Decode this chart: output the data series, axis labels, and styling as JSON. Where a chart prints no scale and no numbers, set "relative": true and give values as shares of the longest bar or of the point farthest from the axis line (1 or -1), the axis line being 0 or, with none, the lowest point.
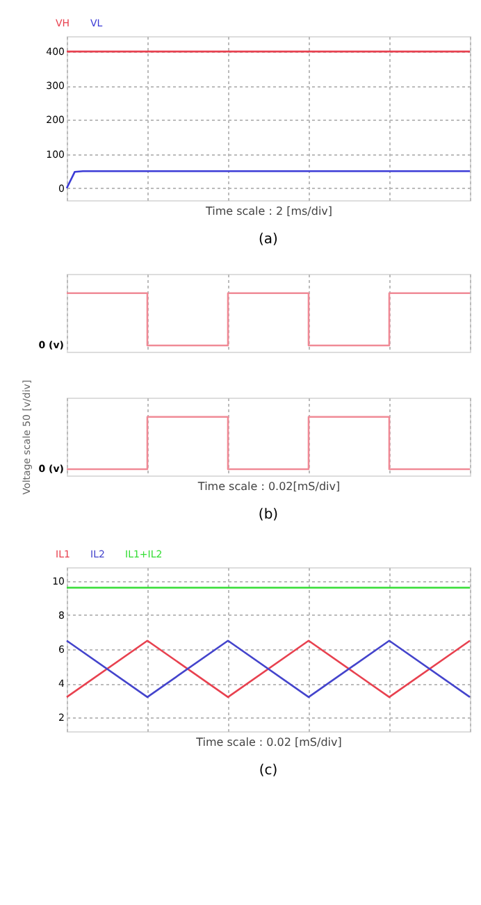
{
  "chart_data": [
    {
      "type": "line",
      "xlabel": "Time scale : 2 [ms/div]",
      "annotations": [
        "(a)"
      ],
      "categories": [
        null,
        null,
        null,
        null,
        null,
        null,
        null,
        null,
        null,
        null,
        null,
        null,
        null,
        null,
        null,
        null,
        null,
        null,
        null,
        null,
        null,
        null,
        null,
        null,
        null,
        null,
        null,
        null,
        null,
        null,
        null,
        null,
        null,
        null,
        null,
        null,
        null,
        null,
        null,
        null,
        null,
        null,
        null,
        null,
        null,
        null,
        null,
        null,
        null,
        null,
        null
      ],
      "series": [
        {
          "name": "VH",
          "color": "#e8414f",
          "values": [
            400,
            400,
            400,
            400,
            400,
            400,
            400,
            400,
            400,
            400,
            400,
            400,
            400,
            400,
            400,
            400,
            400,
            400,
            400,
            400,
            400,
            400,
            400,
            400,
            400,
            400,
            400,
            400,
            400,
            400,
            400,
            400,
            400,
            400,
            400,
            400,
            400,
            400,
            400,
            400,
            400,
            400,
            400,
            400,
            400,
            400,
            400,
            400,
            400,
            400,
            400
          ]
        },
        {
          "name": "VL",
          "color": "#3b3bd6",
          "values": [
            0,
            48,
            50,
            50,
            50,
            50,
            50,
            50,
            50,
            50,
            50,
            50,
            50,
            50,
            50,
            50,
            50,
            50,
            50,
            50,
            50,
            50,
            50,
            50,
            50,
            50,
            50,
            50,
            50,
            50,
            50,
            50,
            50,
            50,
            50,
            50,
            50,
            50,
            50,
            50,
            50,
            50,
            50,
            50,
            50,
            50,
            50,
            50,
            50,
            50,
            50
          ]
        }
      ],
      "ylim": [
        -35,
        445
      ],
      "yticks": [
        0,
        100,
        200,
        300,
        400
      ],
      "grid": true,
      "legend": "top left",
      "tick_labels": "y"
    },
    {
      "type": "step",
      "relative": true,
      "annotations": [
        "0 (v)"
      ],
      "categories": [
        null,
        null,
        null,
        null,
        null,
        null
      ],
      "series": [
        {
          "color": "#f08a96",
          "values": [
            1,
            0,
            1,
            0,
            1,
            1
          ]
        }
      ],
      "grid": "x",
      "tick_labels": false
    },
    {
      "type": "step",
      "relative": true,
      "xlabel": "Time scale : 0.02[mS/div]",
      "ylabel": "Voltage scale 50 [v/div]",
      "annotations": [
        "0 (v)",
        "(b)"
      ],
      "categories": [
        null,
        null,
        null,
        null,
        null,
        null
      ],
      "series": [
        {
          "color": "#f08a96",
          "values": [
            0,
            1,
            0,
            1,
            0,
            0
          ]
        }
      ],
      "grid": "x",
      "tick_labels": false
    },
    {
      "type": "line",
      "xlabel": "Time scale : 0.02 [mS/div]",
      "annotations": [
        "(c)"
      ],
      "categories": [
        null,
        null,
        null,
        null,
        null,
        null
      ],
      "series": [
        {
          "name": "IL1",
          "color": "#e8414f",
          "values": [
            3.2,
            6.5,
            3.2,
            6.5,
            3.2,
            6.5
          ]
        },
        {
          "name": "IL2",
          "color": "#4444cc",
          "values": [
            6.5,
            3.2,
            6.5,
            3.2,
            6.5,
            3.2
          ]
        },
        {
          "name": "IL1+IL2",
          "color": "#33dd33",
          "values": [
            9.6,
            9.6,
            9.6,
            9.6,
            9.6,
            9.6
          ]
        }
      ],
      "ylim": [
        1.2,
        10.8
      ],
      "yticks": [
        2,
        4,
        6,
        8,
        10
      ],
      "grid": true,
      "legend": "top left",
      "tick_labels": "y"
    }
  ]
}
